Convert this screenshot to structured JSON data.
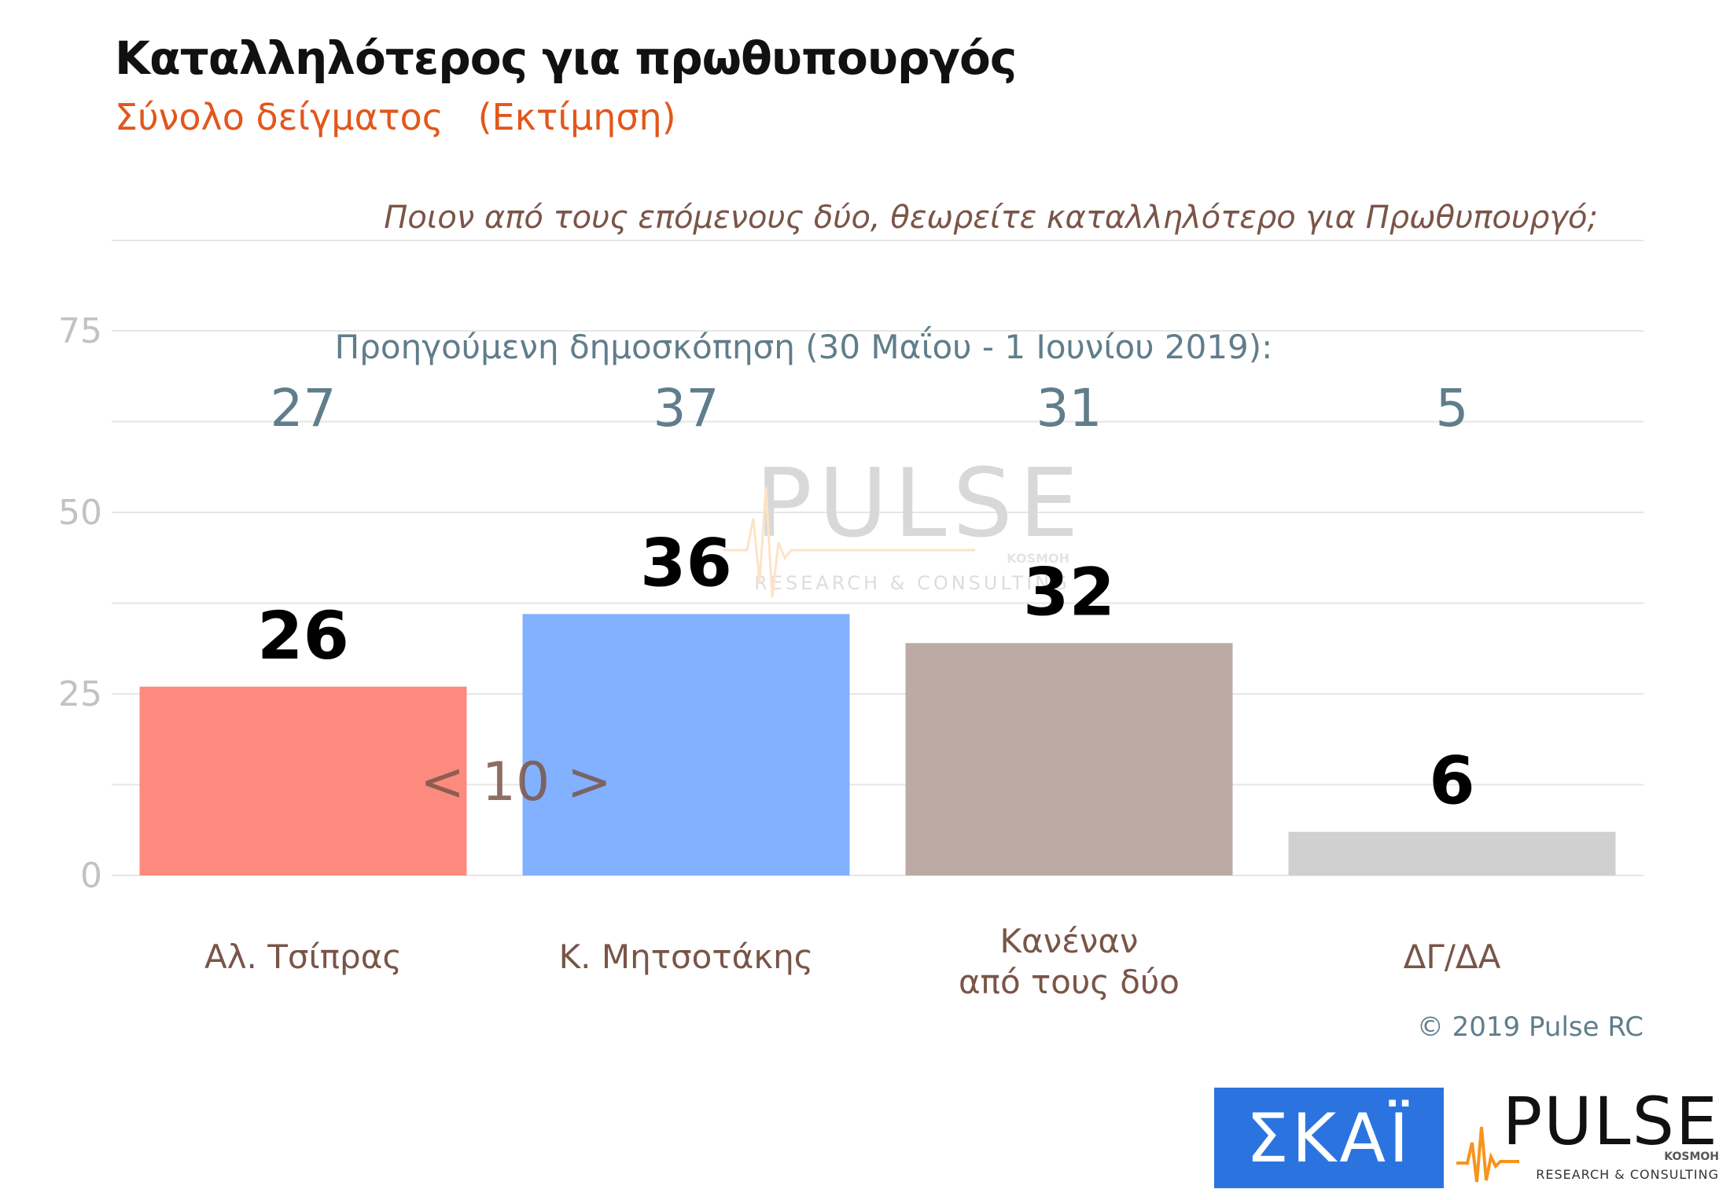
{
  "header": {
    "title": "Καταλληλότερος για πρωθυπουργός",
    "subtitle": "Σύνολο δείγματος   (Εκτίμηση)"
  },
  "question": "Ποιον από τους επόμενους δύο, θεωρείτε καταλληλότερο για Πρωθυπουργό;",
  "previous_poll_label": "Προηγούμενη δημοσκόπηση (30 Μαΐου - 1 Ιουνίου 2019):",
  "difference_annotation": "< 10 >",
  "copyright": "© 2019 Pulse RC",
  "watermark": {
    "brand": "PULSE",
    "sub": "RESEARCH & CONSULTING",
    "partner": "KOSMOH"
  },
  "logos": {
    "skai": "ΣΚΑΪ",
    "pulse": {
      "brand": "PULSE",
      "sub": "RESEARCH & CONSULTING",
      "partner": "KOSMOH"
    }
  },
  "colors": {
    "title": "#111111",
    "subtitle": "#e2571b",
    "question": "#7a5548",
    "previous": "#607d8b",
    "category_label": "#795548",
    "grid": "#e6e6e6",
    "tick": "#c2c2c2",
    "skai_bg": "#2b74e0",
    "pulse_orange": "#f7941d"
  },
  "chart_data": {
    "type": "bar",
    "categories": [
      [
        "Αλ. Τσίπρας"
      ],
      [
        "Κ. Μητσοτάκης"
      ],
      [
        "Κανέναν",
        "από τους δύο"
      ],
      [
        "ΔΓ/ΔΑ"
      ]
    ],
    "values": [
      26,
      36,
      32,
      6
    ],
    "previous_values": [
      27,
      37,
      31,
      5
    ],
    "bar_colors": [
      "#fc8a7e",
      "#82b1ff",
      "#bcaaa4",
      "#d0d0d0"
    ],
    "ylim": [
      0,
      85
    ],
    "yticks": [
      0,
      25,
      50,
      75
    ],
    "grid": true
  }
}
